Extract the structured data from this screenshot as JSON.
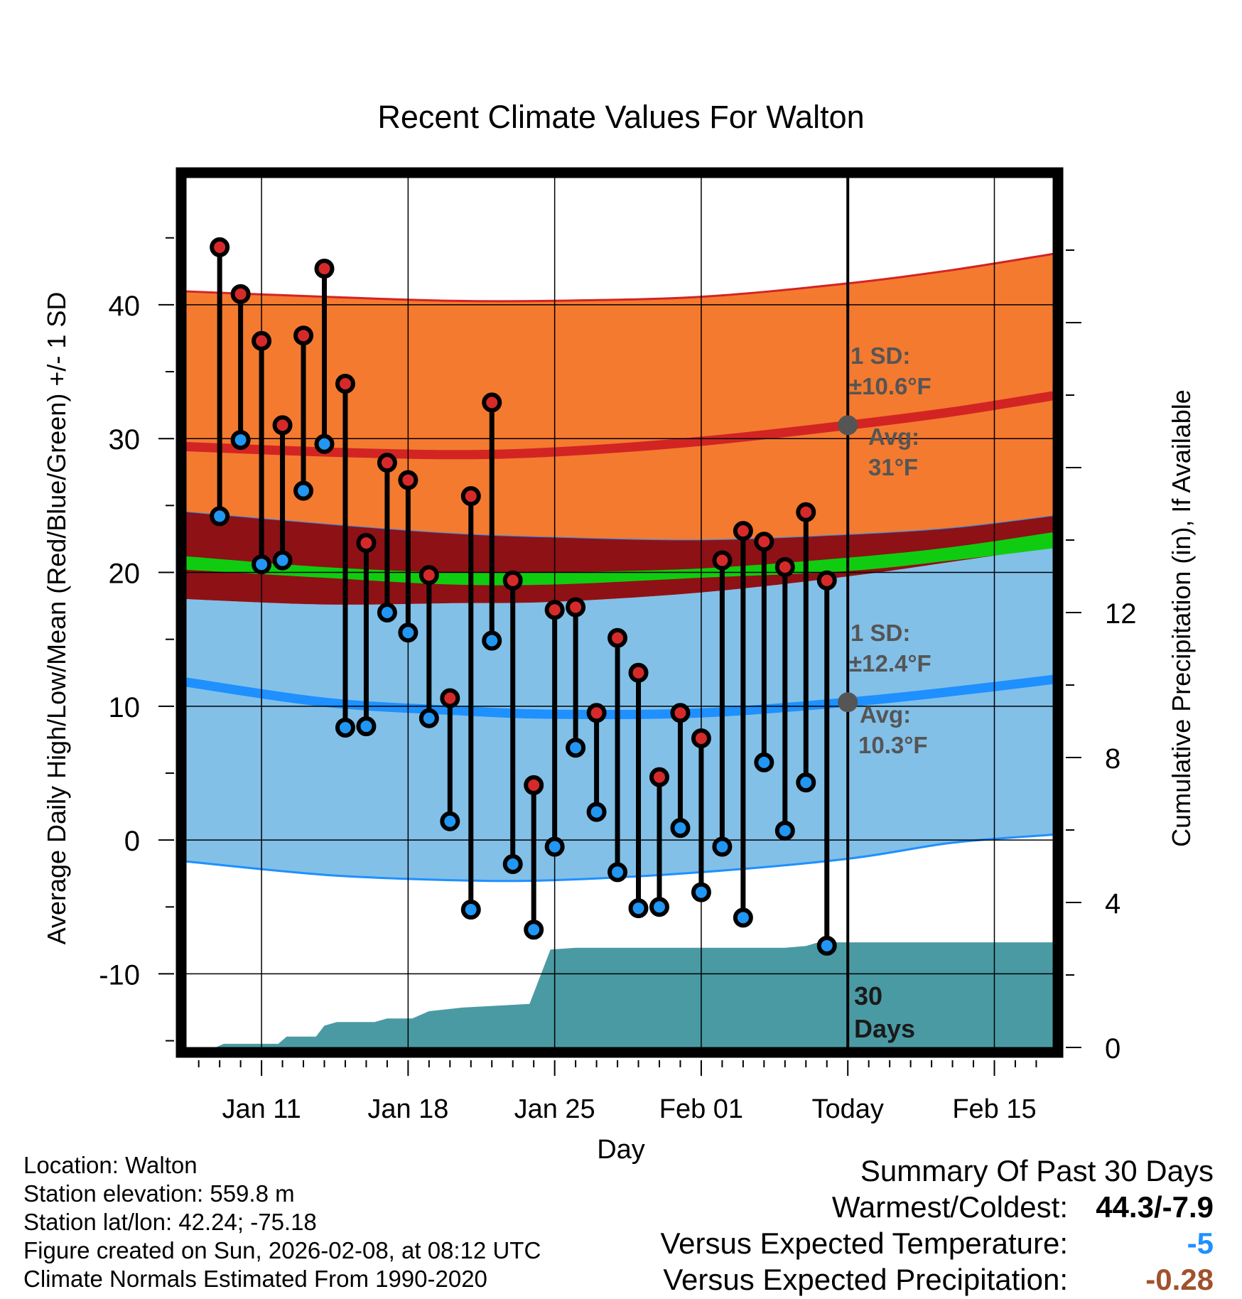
{
  "colors": {
    "high_band": "#f47a2f",
    "high_line": "#d32424",
    "overlap_band": "#8e1116",
    "mean_band": "#10cc10",
    "low_band": "#82c0e8",
    "low_line": "#1e90ff",
    "precip": "#4a9aa3",
    "high_dot": "#d62a2a",
    "low_dot": "#2196f3",
    "label_gray": "#555555",
    "temp_diff": "#1e90ff",
    "precip_diff": "#a0522d"
  },
  "chart_data": {
    "type": "scatter",
    "title": "Recent Climate Values For Walton",
    "xlabel": "Day",
    "ylabel": "Average Daily High/Low/Mean (Red/Blue/Green) +/- 1 SD",
    "y2label": "Cumulative Precipitation (in), If Available",
    "ylim": [
      -15.5,
      49.5
    ],
    "y2lim": [
      0,
      24
    ],
    "xlim": [
      -0.6,
      40.8
    ],
    "xticks": [
      {
        "day": 3,
        "label": "Jan 11"
      },
      {
        "day": 10,
        "label": "Jan 18"
      },
      {
        "day": 17,
        "label": "Jan 25"
      },
      {
        "day": 24,
        "label": "Feb 01"
      },
      {
        "day": 31,
        "label": "Today"
      },
      {
        "day": 38,
        "label": "Feb 15"
      }
    ],
    "yticks": [
      -10,
      0,
      10,
      20,
      30,
      40
    ],
    "y2ticks": [
      0,
      4,
      8,
      12
    ],
    "today_day": 31,
    "days": [
      1,
      2,
      3,
      4,
      5,
      6,
      7,
      8,
      9,
      10,
      11,
      12,
      13,
      14,
      15,
      16,
      17,
      18,
      19,
      20,
      21,
      22,
      23,
      24,
      25,
      26,
      27,
      28,
      29,
      30
    ],
    "highs": [
      44.3,
      40.8,
      37.3,
      31.0,
      37.7,
      42.7,
      34.1,
      22.2,
      28.2,
      26.9,
      19.8,
      10.6,
      25.7,
      32.7,
      19.4,
      4.1,
      17.2,
      17.4,
      9.5,
      15.1,
      12.5,
      4.7,
      9.5,
      7.6,
      20.9,
      23.1,
      22.3,
      20.4,
      24.5,
      19.4
    ],
    "lows": [
      24.2,
      29.9,
      20.6,
      20.9,
      26.1,
      29.6,
      8.4,
      8.5,
      17.0,
      15.5,
      9.1,
      1.4,
      -5.2,
      14.9,
      -1.8,
      -6.7,
      -0.5,
      6.9,
      2.1,
      -2.4,
      -5.1,
      -5.0,
      0.9,
      -3.9,
      -0.5,
      -5.8,
      5.8,
      0.7,
      4.3,
      -7.9
    ],
    "normals": {
      "days": [
        -0.6,
        6,
        12,
        17,
        24,
        31,
        36,
        40.8
      ],
      "high_mean": [
        29.4,
        29.0,
        28.8,
        29.0,
        29.8,
        31.0,
        32.0,
        33.2
      ],
      "high_upper": [
        41.0,
        40.6,
        40.3,
        40.3,
        40.6,
        41.6,
        42.6,
        43.8
      ],
      "high_lower": [
        24.5,
        23.6,
        22.9,
        22.6,
        22.4,
        22.8,
        23.3,
        24.2
      ],
      "mean_upper": [
        21.2,
        20.4,
        20.0,
        20.0,
        20.3,
        21.1,
        21.9,
        23.0
      ],
      "mean_lower": [
        20.2,
        19.6,
        19.1,
        19.1,
        19.6,
        20.1,
        20.9,
        21.8
      ],
      "low_mean": [
        11.8,
        10.3,
        9.7,
        9.4,
        9.5,
        10.3,
        11.1,
        12.0
      ],
      "low_upper": [
        18.0,
        17.6,
        17.7,
        17.8,
        18.5,
        19.7,
        20.8,
        21.9
      ],
      "low_lower": [
        -1.6,
        -2.6,
        -3.0,
        -3.0,
        -2.4,
        -1.4,
        -0.2,
        0.4
      ]
    },
    "precip_cumulative": {
      "days": [
        -0.6,
        0.8,
        1.2,
        3.8,
        4.2,
        5.6,
        6.0,
        6.6,
        7.6,
        8.4,
        9.0,
        10.2,
        11.0,
        12.6,
        15.8,
        16.8,
        18.0,
        20.0,
        23.0,
        26.0,
        28.0,
        29.0,
        29.6,
        40.8
      ],
      "values": [
        0,
        0,
        0.1,
        0.1,
        0.3,
        0.3,
        0.6,
        0.7,
        0.7,
        0.7,
        0.8,
        0.8,
        1.0,
        1.1,
        1.2,
        2.7,
        2.75,
        2.75,
        2.75,
        2.75,
        2.75,
        2.8,
        2.9,
        2.9
      ]
    },
    "annotations": {
      "high_sd_line1": "1 SD:",
      "high_sd_line2": "±10.6°F",
      "high_avg_line1": "Avg:",
      "high_avg_line2": "31°F",
      "low_sd_line1": "1 SD:",
      "low_sd_line2": "±12.4°F",
      "low_avg_line1": "Avg:",
      "low_avg_line2": "10.3°F",
      "window_line1": "30",
      "window_line2": "Days"
    },
    "high_avg_value": 31.0,
    "low_avg_value": 10.3
  },
  "info": {
    "location": "Location: Walton",
    "elevation": "Station elevation: 559.8 m",
    "latlon": "Station lat/lon: 42.24; -75.18",
    "created": "Figure created on Sun, 2026-02-08, at 08:12 UTC",
    "normals": "Climate Normals Estimated From 1990-2020"
  },
  "summary": {
    "title": "Summary Of Past 30 Days",
    "warmest_label": "Warmest/Coldest:",
    "warmest_value": "44.3/-7.9",
    "temp_label": "Versus Expected Temperature:",
    "temp_value": "-5",
    "precip_label": "Versus Expected Precipitation:",
    "precip_value": "-0.28"
  }
}
